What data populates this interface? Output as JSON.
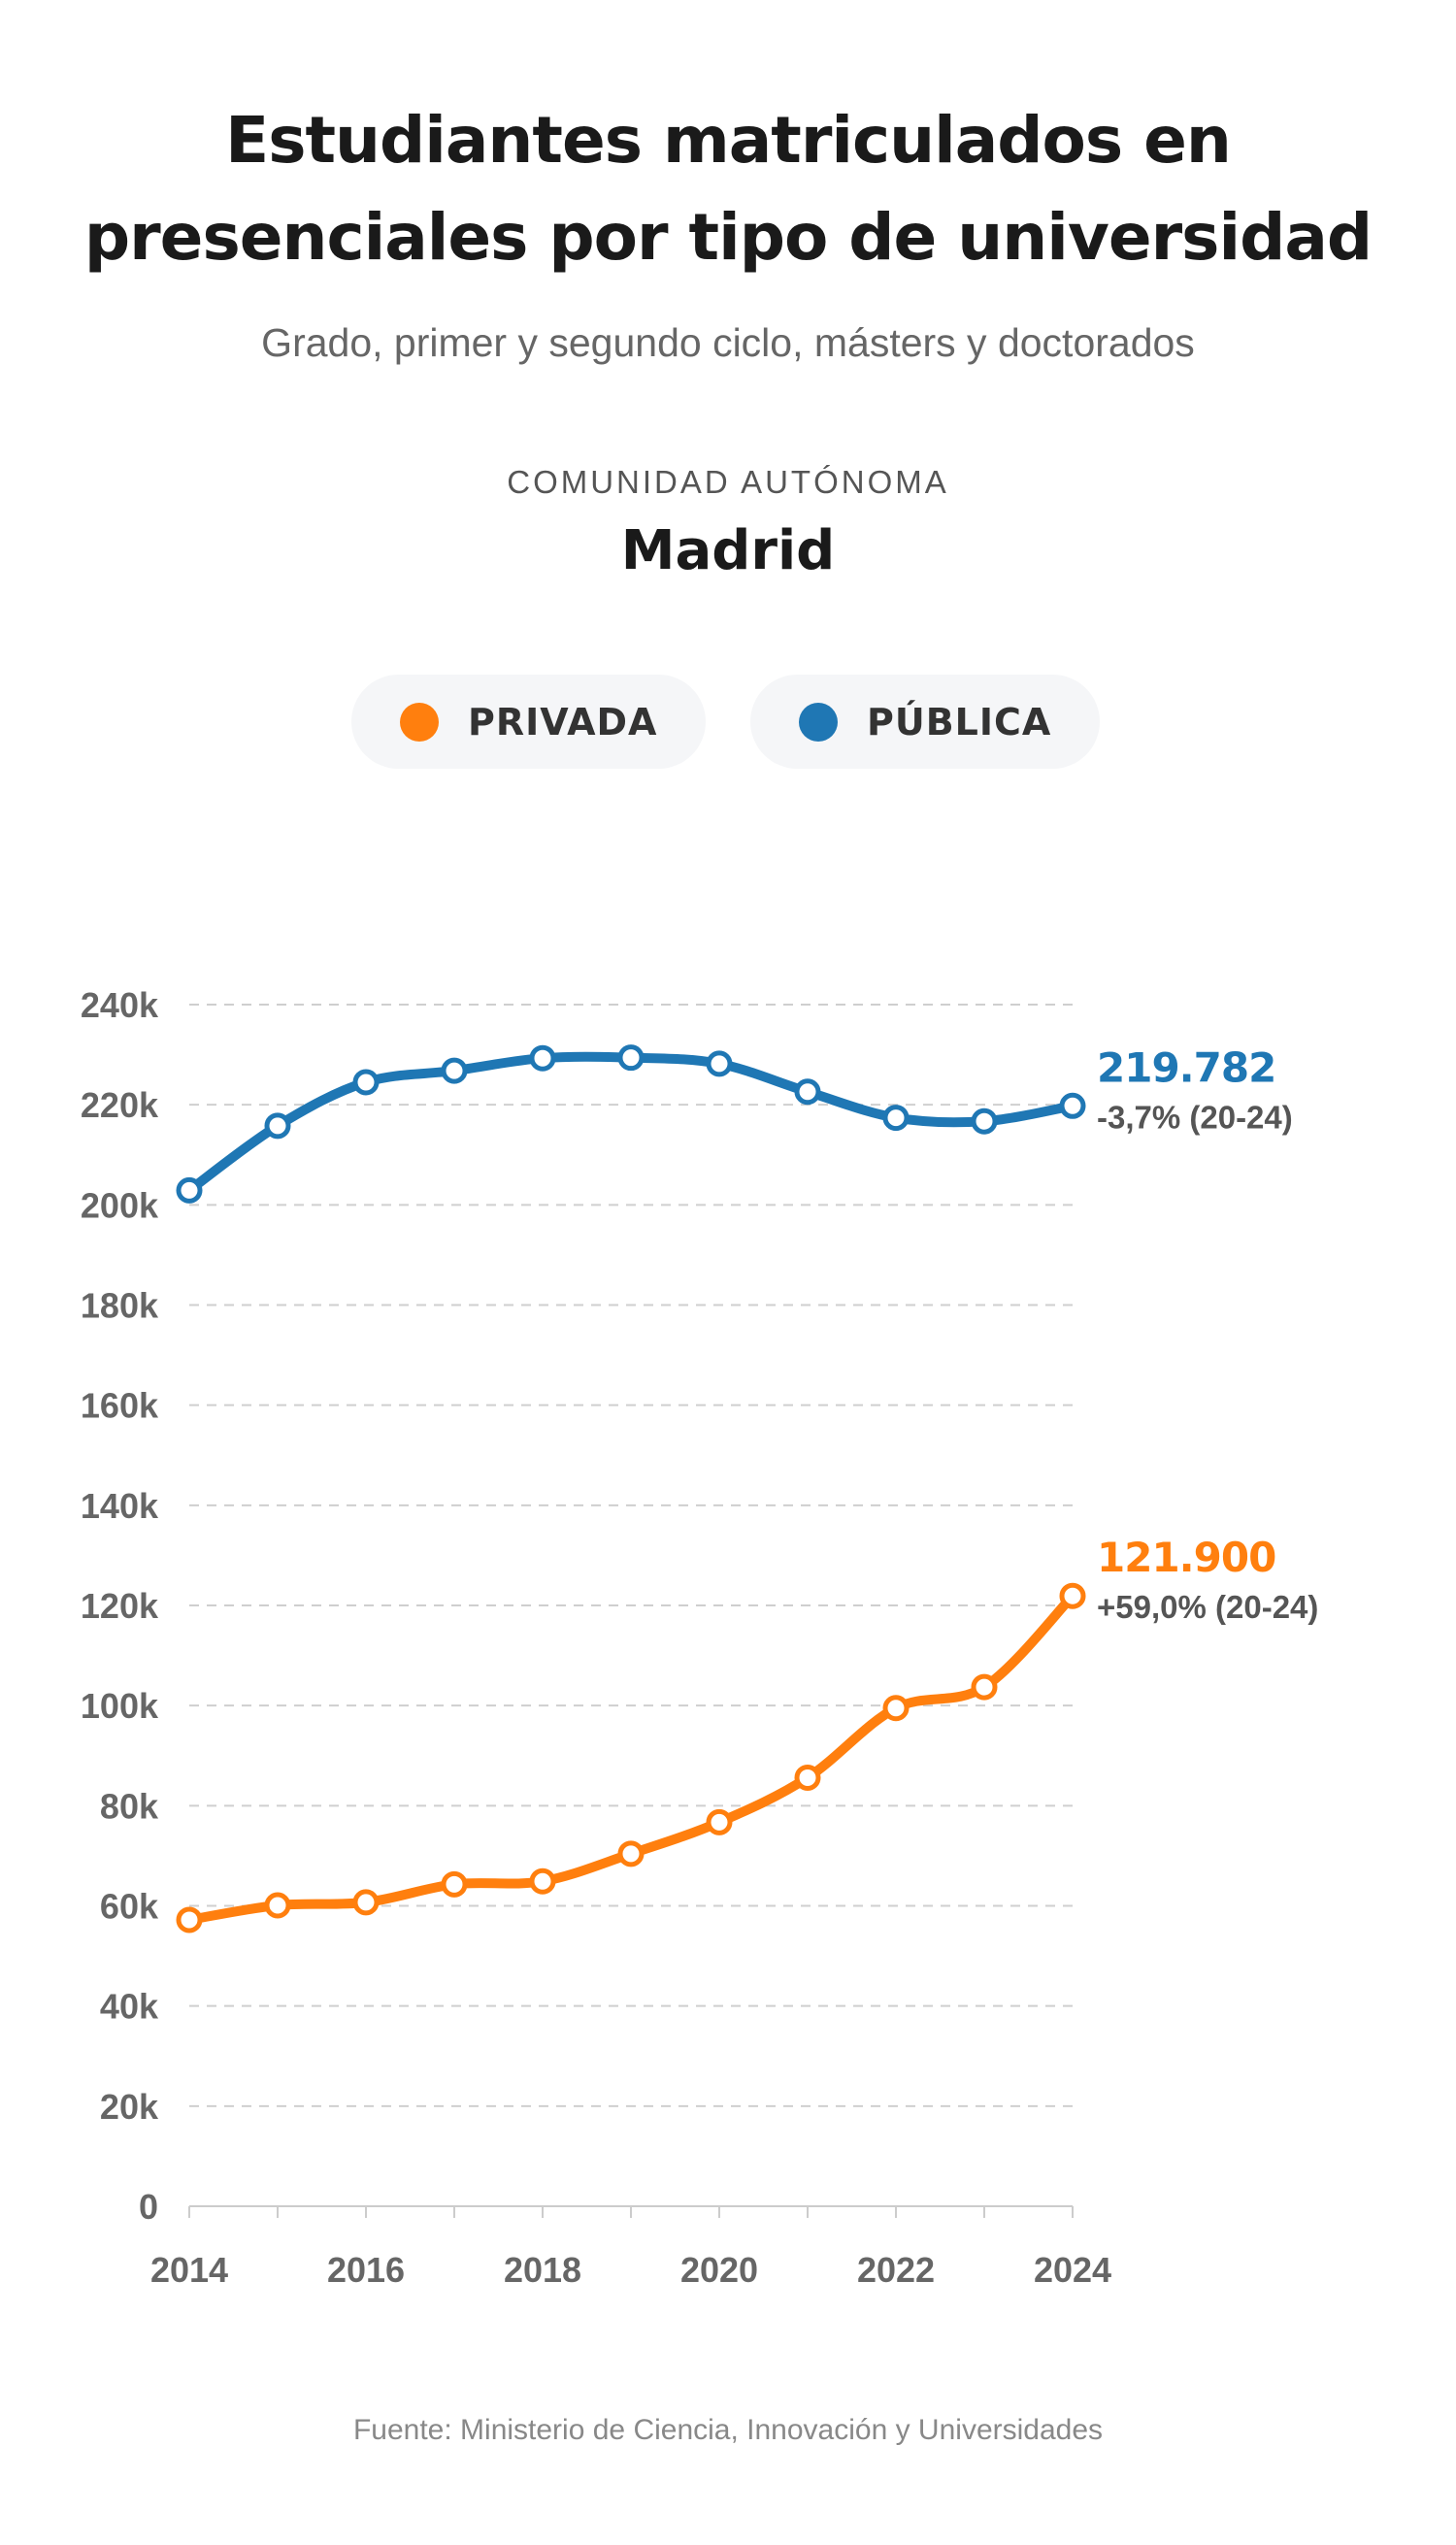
{
  "title_line1": "Estudiantes matriculados en",
  "title_line2": "presenciales por tipo de universidad",
  "subtitle": "Grado, primer y segundo ciclo, másters y doctorados",
  "region_label": "COMUNIDAD AUTÓNOMA",
  "region": "Madrid",
  "source": "Fuente: Ministerio de Ciencia, Innovación y Universidades",
  "chart_data": {
    "type": "line",
    "title": "Estudiantes matriculados en presenciales por tipo de universidad",
    "x": [
      2014,
      2015,
      2016,
      2017,
      2018,
      2019,
      2020,
      2021,
      2022,
      2023,
      2024
    ],
    "xticks": [
      "2014",
      "2016",
      "2018",
      "2020",
      "2022",
      "2024"
    ],
    "yticks": [
      "0",
      "20k",
      "40k",
      "60k",
      "80k",
      "100k",
      "120k",
      "140k",
      "160k",
      "180k",
      "200k",
      "220k",
      "240k"
    ],
    "ylim": [
      0,
      240000
    ],
    "grid": true,
    "legend_position": "top-center",
    "series": [
      {
        "name": "PRIVADA",
        "color": "#ff7f0e",
        "values": [
          57200,
          60100,
          60700,
          64300,
          64900,
          70400,
          76700,
          85600,
          99500,
          103700,
          121900
        ],
        "last_label": "121.900",
        "change_label": "+59,0% (20-24)"
      },
      {
        "name": "PÚBLICA",
        "color": "#1f77b4",
        "values": [
          202900,
          215800,
          224500,
          226800,
          229300,
          229400,
          228200,
          222600,
          217400,
          216700,
          219782
        ],
        "last_label": "219.782",
        "change_label": "-3,7% (20-24)"
      }
    ]
  }
}
